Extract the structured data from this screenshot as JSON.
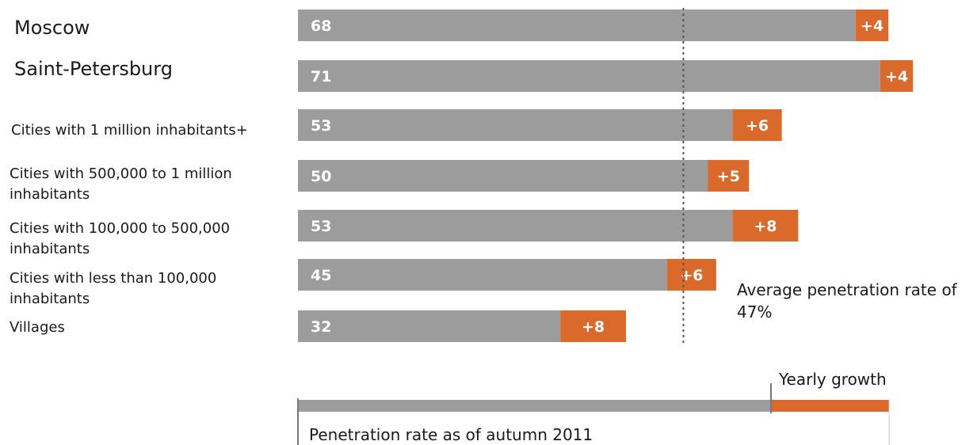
{
  "chart_data": {
    "type": "bar",
    "orientation": "horizontal",
    "stacked": true,
    "categories": [
      "Moscow",
      "Saint-Petersburg",
      "Cities with 1 million inhabitants+",
      "Cities with 500,000 to 1 million inhabitants",
      "Cities with 100,000 to 500,000 inhabitants",
      "Cities with less than 100,000 inhabitants",
      "Villages"
    ],
    "series": [
      {
        "name": "Penetration rate as of autumn 2011",
        "color": "#9c9c9c",
        "values": [
          68,
          71,
          53,
          50,
          53,
          45,
          32
        ]
      },
      {
        "name": "Yearly growth",
        "color": "#d96a2b",
        "values": [
          4,
          4,
          6,
          5,
          8,
          6,
          8
        ]
      }
    ],
    "value_labels": {
      "penetration": [
        "68",
        "71",
        "53",
        "50",
        "53",
        "45",
        "32"
      ],
      "growth": [
        "+4",
        "+4",
        "+6",
        "+5",
        "+8",
        "+6",
        "+8"
      ]
    },
    "reference_line": {
      "value": 47,
      "label": "Average penetration rate of 47%"
    },
    "legend": {
      "placement": "bottom",
      "penetration_label": "Penetration rate as of autumn 2011",
      "growth_label": "Yearly growth"
    },
    "xlim": [
      0,
      80
    ],
    "grid": false,
    "title": "",
    "xlabel": "",
    "ylabel": ""
  }
}
